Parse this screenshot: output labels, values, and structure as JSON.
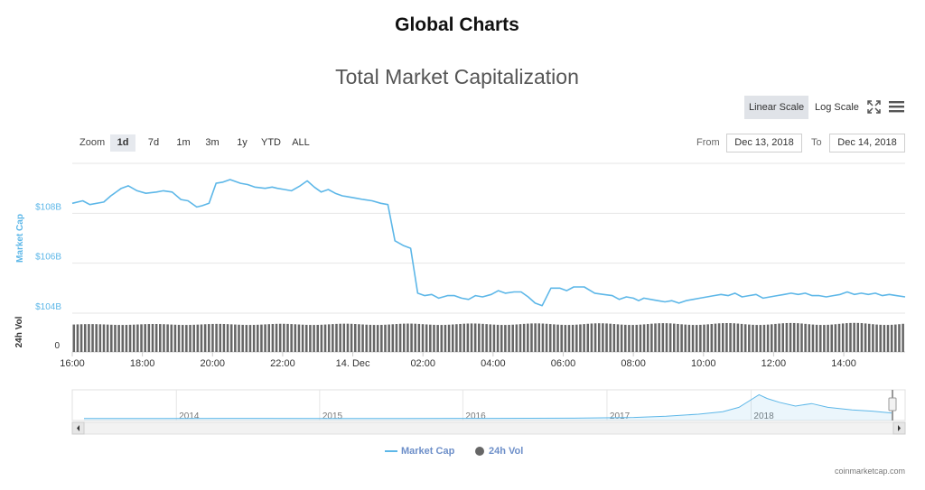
{
  "page": {
    "title": "Global Charts"
  },
  "toolbar": {
    "linear_label": "Linear Scale",
    "log_label": "Log Scale",
    "zoom_label": "Zoom",
    "zoom_buttons": [
      "1d",
      "7d",
      "1m",
      "3m",
      "1y",
      "YTD",
      "ALL"
    ],
    "active_zoom": "1d",
    "from_label": "From",
    "from_value": "Dec 13, 2018",
    "to_label": "To",
    "to_value": "Dec 14, 2018",
    "fullscreen_icon": "fullscreen-icon",
    "menu_icon": "hamburger-menu-icon"
  },
  "legend": {
    "market_cap": "Market Cap",
    "vol": "24h Vol"
  },
  "credits": "coinmarketcap.com",
  "chart_data": {
    "type": "line",
    "title": "Total Market Capitalization",
    "scale": "linear",
    "ylabel": "Market Cap",
    "ylabel2": "24h Vol",
    "yticks": [
      "$104B",
      "$106B",
      "$108B"
    ],
    "ytick_values": [
      104,
      106,
      108
    ],
    "ylim": [
      104,
      110
    ],
    "vol_ticks": [
      "0"
    ],
    "xticks": [
      "16:00",
      "18:00",
      "20:00",
      "22:00",
      "14. Dec",
      "02:00",
      "04:00",
      "06:00",
      "08:00",
      "10:00",
      "12:00",
      "14:00"
    ],
    "xtick_hours": [
      0,
      2,
      4,
      6,
      8,
      10,
      12,
      14,
      16,
      18,
      20,
      22
    ],
    "xlim_hours": [
      0,
      23.75
    ],
    "grid": true,
    "colors": {
      "market_cap": "#5db7e8",
      "vol": "#666666",
      "accent": "#6d8fc9"
    },
    "series": [
      {
        "name": "Market Cap",
        "x": [
          0,
          0.3,
          0.5,
          0.9,
          1.1,
          1.4,
          1.6,
          1.85,
          2.1,
          2.4,
          2.6,
          2.85,
          3.1,
          3.3,
          3.55,
          3.7,
          3.9,
          4.1,
          4.3,
          4.5,
          4.8,
          5.0,
          5.2,
          5.5,
          5.7,
          5.85,
          6.05,
          6.25,
          6.5,
          6.7,
          6.9,
          7.1,
          7.3,
          7.5,
          7.7,
          7.9,
          8.1,
          8.3,
          8.55,
          8.8,
          9.0,
          9.2,
          9.45,
          9.65,
          9.85,
          10.05,
          10.25,
          10.45,
          10.7,
          10.9,
          11.1,
          11.3,
          11.5,
          11.7,
          11.95,
          12.15,
          12.35,
          12.6,
          12.8,
          13.0,
          13.2,
          13.4,
          13.65,
          13.9,
          14.1,
          14.3,
          14.6,
          14.9,
          15.15,
          15.4,
          15.6,
          15.8,
          16.0,
          16.15,
          16.3,
          16.5,
          16.7,
          16.9,
          17.1,
          17.3,
          17.5,
          17.7,
          17.9,
          18.1,
          18.3,
          18.5,
          18.7,
          18.9,
          19.1,
          19.3,
          19.5,
          19.7,
          19.9,
          20.1,
          20.3,
          20.5,
          20.7,
          20.9,
          21.1,
          21.3,
          21.5,
          21.7,
          21.9,
          22.1,
          22.3,
          22.5,
          22.7,
          22.9,
          23.1,
          23.3,
          23.5,
          23.75
        ],
        "values": [
          108.4,
          108.5,
          108.35,
          108.45,
          108.7,
          109.0,
          109.1,
          108.9,
          108.8,
          108.85,
          108.9,
          108.85,
          108.55,
          108.5,
          108.25,
          108.3,
          108.4,
          109.2,
          109.25,
          109.35,
          109.2,
          109.15,
          109.05,
          109.0,
          109.05,
          109.0,
          108.95,
          108.9,
          109.1,
          109.3,
          109.05,
          108.85,
          108.95,
          108.8,
          108.7,
          108.65,
          108.6,
          108.55,
          108.5,
          108.4,
          108.35,
          106.9,
          106.7,
          106.6,
          104.8,
          104.7,
          104.75,
          104.6,
          104.7,
          104.7,
          104.6,
          104.55,
          104.7,
          104.65,
          104.75,
          104.9,
          104.8,
          104.85,
          104.85,
          104.65,
          104.4,
          104.3,
          105.0,
          105.0,
          104.9,
          105.05,
          105.05,
          104.8,
          104.75,
          104.7,
          104.55,
          104.65,
          104.6,
          104.5,
          104.6,
          104.55,
          104.5,
          104.45,
          104.5,
          104.4,
          104.5,
          104.55,
          104.6,
          104.65,
          104.7,
          104.75,
          104.7,
          104.8,
          104.65,
          104.7,
          104.75,
          104.6,
          104.65,
          104.7,
          104.75,
          104.8,
          104.75,
          104.8,
          104.7,
          104.7,
          104.65,
          104.7,
          104.75,
          104.85,
          104.75,
          104.8,
          104.75,
          104.8,
          104.7,
          104.75,
          104.7,
          104.65
        ]
      },
      {
        "name": "24h Vol",
        "type": "column",
        "bar_count": 222,
        "relative_height": [
          0.88,
          0.95
        ]
      }
    ],
    "navigator": {
      "years": [
        "2014",
        "2015",
        "2016",
        "2017",
        "2018"
      ],
      "year_fractions": [
        0.125,
        0.297,
        0.469,
        0.642,
        0.815
      ],
      "series_fraction": [
        [
          0.0,
          0.01
        ],
        [
          0.1,
          0.012
        ],
        [
          0.2,
          0.014
        ],
        [
          0.3,
          0.01
        ],
        [
          0.4,
          0.012
        ],
        [
          0.5,
          0.013
        ],
        [
          0.6,
          0.02
        ],
        [
          0.68,
          0.05
        ],
        [
          0.72,
          0.1
        ],
        [
          0.76,
          0.18
        ],
        [
          0.79,
          0.28
        ],
        [
          0.81,
          0.45
        ],
        [
          0.825,
          0.75
        ],
        [
          0.835,
          0.95
        ],
        [
          0.845,
          0.8
        ],
        [
          0.86,
          0.65
        ],
        [
          0.88,
          0.5
        ],
        [
          0.9,
          0.6
        ],
        [
          0.92,
          0.45
        ],
        [
          0.95,
          0.35
        ],
        [
          0.975,
          0.3
        ],
        [
          1.0,
          0.22
        ]
      ]
    }
  }
}
